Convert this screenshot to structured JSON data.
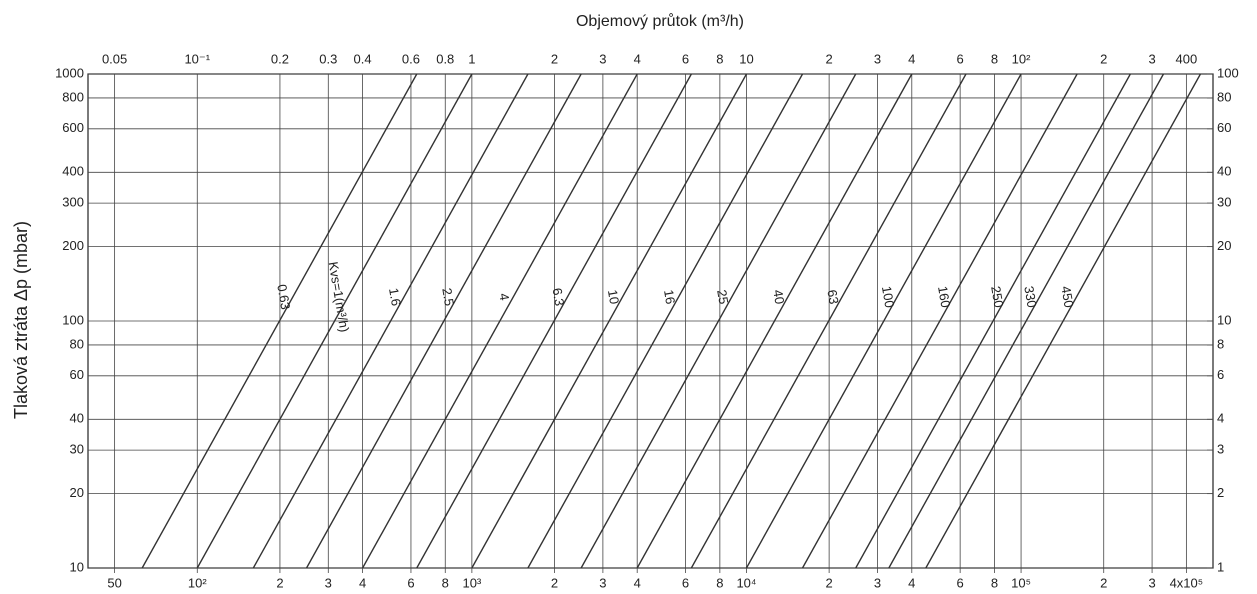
{
  "chart_data": {
    "type": "line",
    "title": "Objemový průtok (m³/h)",
    "y_label": "Tlaková ztráta Δp (mbar)",
    "log_x": true,
    "log_y": true,
    "grid": true,
    "color": "#333333",
    "xlim": [
      40,
      500000
    ],
    "x2lim": [
      0.04,
      500
    ],
    "ylim": [
      10,
      1000
    ],
    "y2lim": [
      1,
      100
    ],
    "xticks": [
      50,
      {
        "value": 100,
        "label": "10²"
      },
      {
        "value": 200,
        "label": "2"
      },
      {
        "value": 300,
        "label": "3"
      },
      {
        "value": 400,
        "label": "4"
      },
      {
        "value": 600,
        "label": "6"
      },
      {
        "value": 800,
        "label": "8"
      },
      {
        "value": 1000,
        "label": "10³"
      },
      {
        "value": 2000,
        "label": "2"
      },
      {
        "value": 3000,
        "label": "3"
      },
      {
        "value": 4000,
        "label": "4"
      },
      {
        "value": 6000,
        "label": "6"
      },
      {
        "value": 8000,
        "label": "8"
      },
      {
        "value": 10000,
        "label": "10⁴"
      },
      {
        "value": 20000,
        "label": "2"
      },
      {
        "value": 30000,
        "label": "3"
      },
      {
        "value": 40000,
        "label": "4"
      },
      {
        "value": 60000,
        "label": "6"
      },
      {
        "value": 80000,
        "label": "8"
      },
      {
        "value": 100000,
        "label": "10⁵"
      },
      {
        "value": 200000,
        "label": "2"
      },
      {
        "value": 300000,
        "label": "3"
      },
      {
        "value": 400000,
        "label": "4x10⁵"
      }
    ],
    "x2ticks": [
      0.05,
      {
        "value": 0.1,
        "label": "10⁻¹"
      },
      0.2,
      0.3,
      0.4,
      0.6,
      0.8,
      1,
      2,
      3,
      4,
      6,
      8,
      10,
      {
        "value": 20,
        "label": "2"
      },
      {
        "value": 30,
        "label": "3"
      },
      {
        "value": 40,
        "label": "4"
      },
      {
        "value": 60,
        "label": "6"
      },
      {
        "value": 80,
        "label": "8"
      },
      {
        "value": 100,
        "label": "10²"
      },
      {
        "value": 200,
        "label": "2"
      },
      {
        "value": 300,
        "label": "3"
      },
      400
    ],
    "yticks": [
      10,
      20,
      30,
      40,
      60,
      80,
      100,
      200,
      300,
      400,
      600,
      800,
      1000
    ],
    "y2ticks": [
      1,
      2,
      3,
      4,
      6,
      8,
      10,
      20,
      30,
      40,
      60,
      80,
      100
    ],
    "series": [
      {
        "name": "0.63",
        "kv": 0.63
      },
      {
        "name": "Kvs=1(m³/h)",
        "kv": 1
      },
      {
        "name": "1.6",
        "kv": 1.6
      },
      {
        "name": "2.5",
        "kv": 2.5
      },
      {
        "name": "4",
        "kv": 4
      },
      {
        "name": "6.3",
        "kv": 6.3
      },
      {
        "name": "10",
        "kv": 10
      },
      {
        "name": "16",
        "kv": 16
      },
      {
        "name": "25",
        "kv": 25
      },
      {
        "name": "40",
        "kv": 40
      },
      {
        "name": "63",
        "kv": 63
      },
      {
        "name": "100",
        "kv": 100
      },
      {
        "name": "160",
        "kv": 160
      },
      {
        "name": "250",
        "kv": 250
      },
      {
        "name": "330",
        "kv": 330
      },
      {
        "name": "450",
        "kv": 450
      }
    ]
  }
}
